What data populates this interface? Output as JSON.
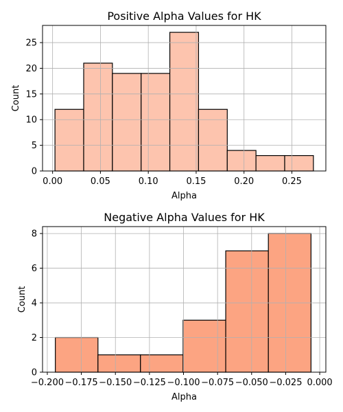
{
  "chart_data": [
    {
      "type": "bar",
      "title": "Positive Alpha Values for HK",
      "xlabel": "Alpha",
      "ylabel": "Count",
      "xlim": [
        -0.0105,
        0.2855
      ],
      "ylim": [
        0,
        28.35
      ],
      "grid": true,
      "bar_color": "#fdc4ae",
      "edge_color": "#000000",
      "bins": [
        {
          "x0": 0.0025,
          "x1": 0.0325,
          "value": 12
        },
        {
          "x0": 0.0325,
          "x1": 0.0625,
          "value": 21
        },
        {
          "x0": 0.0625,
          "x1": 0.0925,
          "value": 19
        },
        {
          "x0": 0.0925,
          "x1": 0.1225,
          "value": 19
        },
        {
          "x0": 0.1225,
          "x1": 0.1525,
          "value": 27
        },
        {
          "x0": 0.1525,
          "x1": 0.1825,
          "value": 12
        },
        {
          "x0": 0.1825,
          "x1": 0.2125,
          "value": 4
        },
        {
          "x0": 0.2125,
          "x1": 0.2425,
          "value": 3
        },
        {
          "x0": 0.2425,
          "x1": 0.2725,
          "value": 3
        }
      ],
      "xticks": [
        {
          "v": 0.0,
          "label": "0.00"
        },
        {
          "v": 0.05,
          "label": "0.05"
        },
        {
          "v": 0.1,
          "label": "0.10"
        },
        {
          "v": 0.15,
          "label": "0.15"
        },
        {
          "v": 0.2,
          "label": "0.20"
        },
        {
          "v": 0.25,
          "label": "0.25"
        }
      ],
      "yticks": [
        {
          "v": 0,
          "label": "0"
        },
        {
          "v": 5,
          "label": "5"
        },
        {
          "v": 10,
          "label": "10"
        },
        {
          "v": 15,
          "label": "15"
        },
        {
          "v": 20,
          "label": "20"
        },
        {
          "v": 25,
          "label": "25"
        }
      ]
    },
    {
      "type": "bar",
      "title": "Negative Alpha Values for HK",
      "xlabel": "Alpha",
      "ylabel": "Count",
      "xlim": [
        -0.2035,
        0.0045
      ],
      "ylim": [
        0,
        8.4
      ],
      "grid": true,
      "bar_color": "#fca482",
      "edge_color": "#000000",
      "bins": [
        {
          "x0": -0.1941,
          "x1": -0.1628,
          "value": 2
        },
        {
          "x0": -0.1628,
          "x1": -0.1316,
          "value": 1
        },
        {
          "x0": -0.1316,
          "x1": -0.1003,
          "value": 1
        },
        {
          "x0": -0.1003,
          "x1": -0.069,
          "value": 3
        },
        {
          "x0": -0.069,
          "x1": -0.0377,
          "value": 7
        },
        {
          "x0": -0.0377,
          "x1": -0.0064,
          "value": 8
        }
      ],
      "xticks": [
        {
          "v": -0.2,
          "label": "−0.200"
        },
        {
          "v": -0.175,
          "label": "−0.175"
        },
        {
          "v": -0.15,
          "label": "−0.150"
        },
        {
          "v": -0.125,
          "label": "−0.125"
        },
        {
          "v": -0.1,
          "label": "−0.100"
        },
        {
          "v": -0.075,
          "label": "−0.075"
        },
        {
          "v": -0.05,
          "label": "−0.050"
        },
        {
          "v": -0.025,
          "label": "−0.025"
        },
        {
          "v": 0.0,
          "label": "0.000"
        }
      ],
      "yticks": [
        {
          "v": 0,
          "label": "0"
        },
        {
          "v": 2,
          "label": "2"
        },
        {
          "v": 4,
          "label": "4"
        },
        {
          "v": 6,
          "label": "6"
        },
        {
          "v": 8,
          "label": "8"
        }
      ]
    }
  ]
}
